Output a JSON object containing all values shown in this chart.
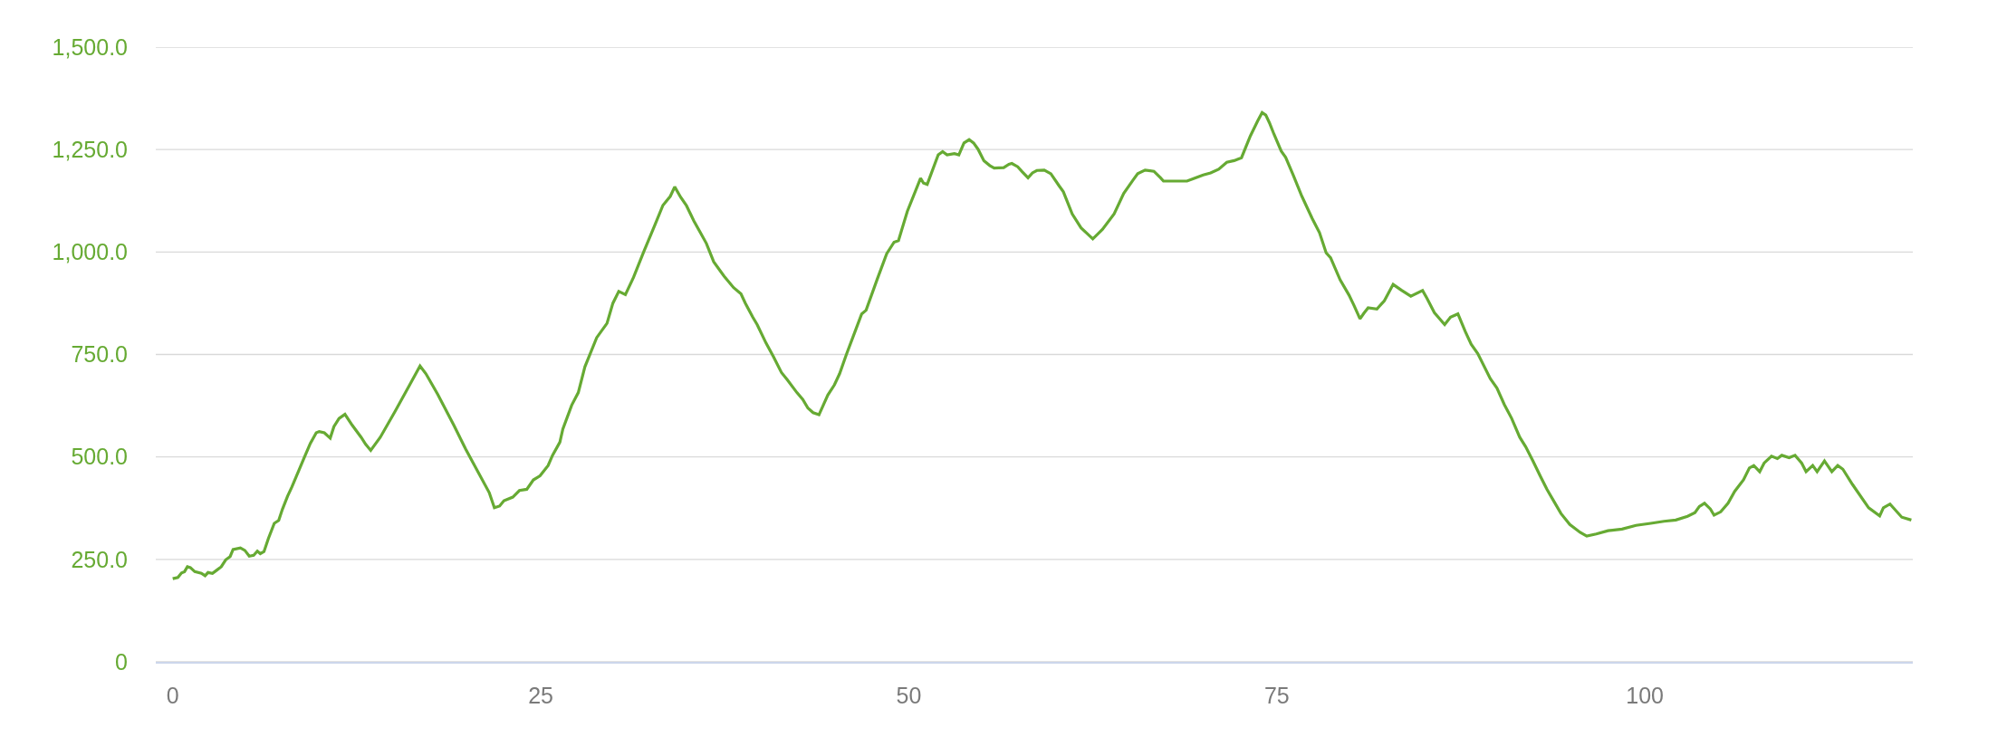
{
  "chart_data": {
    "type": "line",
    "color": "#66aa33",
    "grid": "y",
    "xlim": [
      -1.15,
      118.2
    ],
    "xticks": [
      0,
      25,
      50,
      75,
      100
    ],
    "ylim": [
      0,
      1500
    ],
    "yticks": [
      0,
      {
        "value": 250,
        "label": "250.0"
      },
      {
        "value": 500,
        "label": "500.0"
      },
      {
        "value": 750,
        "label": "750.0"
      },
      {
        "value": 1000,
        "label": "1,000.0"
      },
      {
        "value": 1250,
        "label": "1,250.0"
      },
      {
        "value": 1500,
        "label": "1,500.0"
      }
    ],
    "x": [
      0,
      0.35,
      0.6,
      0.8,
      1.0,
      1.2,
      1.5,
      1.95,
      2.2,
      2.4,
      2.7,
      3.0,
      3.3,
      3.6,
      3.9,
      4.1,
      4.6,
      4.9,
      5.2,
      5.5,
      5.75,
      5.95,
      6.2,
      6.5,
      6.9,
      7.2,
      7.45,
      7.8,
      8.1,
      9.0,
      9.35,
      9.75,
      9.95,
      10.3,
      10.7,
      10.95,
      11.3,
      11.7,
      12.2,
      12.8,
      13.1,
      13.45,
      14.1,
      15.1,
      16.1,
      16.8,
      17.2,
      18.0,
      18.45,
      19.1,
      19.9,
      21.5,
      21.85,
      22.2,
      22.5,
      23.1,
      23.55,
      24.05,
      24.5,
      24.95,
      25.5,
      25.8,
      26.3,
      26.5,
      27.1,
      27.55,
      28.0,
      28.8,
      29.5,
      29.9,
      30.3,
      30.75,
      31.3,
      32.0,
      32.8,
      33.3,
      33.8,
      34.1,
      34.5,
      34.9,
      35.4,
      36.25,
      36.75,
      37.45,
      38.1,
      38.6,
      38.9,
      39.4,
      39.7,
      40.3,
      40.8,
      41.35,
      41.75,
      42.4,
      42.8,
      43.15,
      43.5,
      43.9,
      44.5,
      44.95,
      45.3,
      45.75,
      46.35,
      46.8,
      47.1,
      47.85,
      48.5,
      49.0,
      49.3,
      49.9,
      50.8,
      51.0,
      51.25,
      52.0,
      52.3,
      52.6,
      53.1,
      53.4,
      53.75,
      54.1,
      54.4,
      54.7,
      55.1,
      55.5,
      55.8,
      56.45,
      56.8,
      57.0,
      57.4,
      57.7,
      58.1,
      58.4,
      58.7,
      59.2,
      59.65,
      60.2,
      60.5,
      61.1,
      61.7,
      62.5,
      63.15,
      63.95,
      64.6,
      65.2,
      65.55,
      66.05,
      66.65,
      67.1,
      67.3,
      67.8,
      68.45,
      68.9,
      69.55,
      70.0,
      70.5,
      71.05,
      71.6,
      72.1,
      72.6,
      73.2,
      73.7,
      74.0,
      74.25,
      74.5,
      74.8,
      75.3,
      75.6,
      76.1,
      76.7,
      77.4,
      77.9,
      78.35,
      78.65,
      79.3,
      79.9,
      80.25,
      80.65,
      80.9,
      81.2,
      81.8,
      82.3,
      82.9,
      83.45,
      84.1,
      84.9,
      85.2,
      85.7,
      86.4,
      86.8,
      87.3,
      87.8,
      88.2,
      88.65,
      89.5,
      89.95,
      90.45,
      90.95,
      91.5,
      91.9,
      92.4,
      92.9,
      93.35,
      93.8,
      94.3,
      94.9,
      95.6,
      96.05,
      96.7,
      97.5,
      98.45,
      99.4,
      100.4,
      101.3,
      102.1,
      102.9,
      103.4,
      103.7,
      104.05,
      104.45,
      104.7,
      105.15,
      105.65,
      106.1,
      106.7,
      107.1,
      107.4,
      107.8,
      108.1,
      108.6,
      109.0,
      109.3,
      109.8,
      110.2,
      110.65,
      110.95,
      111.4,
      111.7,
      112.2,
      112.7,
      113.1,
      113.45,
      114.1,
      115.2,
      115.95,
      116.2,
      116.65,
      117.45,
      118.1
    ],
    "values": [
      203,
      206,
      217,
      220,
      232,
      230,
      220,
      216,
      210,
      218,
      216,
      224,
      232,
      249,
      257,
      274,
      278,
      272,
      258,
      260,
      270,
      264,
      269,
      301,
      338,
      345,
      372,
      404,
      427,
      504,
      533,
      559,
      562,
      559,
      546,
      574,
      594,
      604,
      577,
      548,
      531,
      516,
      548,
      611,
      676,
      722,
      703,
      653,
      622,
      577,
      519,
      413,
      376,
      380,
      393,
      402,
      418,
      421,
      444,
      454,
      479,
      504,
      536,
      568,
      626,
      657,
      720,
      791,
      826,
      875,
      904,
      896,
      938,
      1001,
      1070,
      1114,
      1136,
      1159,
      1134,
      1113,
      1076,
      1021,
      976,
      941,
      913,
      898,
      875,
      841,
      823,
      778,
      745,
      706,
      688,
      657,
      640,
      619,
      608,
      603,
      651,
      676,
      703,
      749,
      806,
      849,
      858,
      933,
      996,
      1024,
      1028,
      1099,
      1180,
      1168,
      1165,
      1237,
      1245,
      1237,
      1240,
      1237,
      1266,
      1274,
      1266,
      1251,
      1223,
      1211,
      1205,
      1206,
      1214,
      1216,
      1208,
      1196,
      1181,
      1193,
      1199,
      1200,
      1191,
      1162,
      1147,
      1093,
      1059,
      1032,
      1055,
      1093,
      1143,
      1174,
      1191,
      1200,
      1197,
      1181,
      1173,
      1173,
      1173,
      1173,
      1182,
      1188,
      1193,
      1202,
      1219,
      1223,
      1230,
      1283,
      1320,
      1340,
      1334,
      1315,
      1288,
      1246,
      1231,
      1189,
      1136,
      1082,
      1047,
      998,
      986,
      932,
      895,
      869,
      837,
      850,
      864,
      861,
      881,
      921,
      907,
      892,
      906,
      887,
      852,
      823,
      841,
      849,
      806,
      775,
      752,
      691,
      668,
      628,
      594,
      548,
      525,
      490,
      453,
      421,
      393,
      362,
      335,
      316,
      307,
      312,
      320,
      324,
      333,
      338,
      343,
      346,
      355,
      364,
      379,
      387,
      373,
      358,
      366,
      387,
      416,
      444,
      473,
      479,
      464,
      485,
      502,
      496,
      504,
      498,
      504,
      485,
      464,
      479,
      464,
      490,
      464,
      479,
      470,
      433,
      376,
      356,
      376,
      385,
      353,
      346
    ]
  }
}
